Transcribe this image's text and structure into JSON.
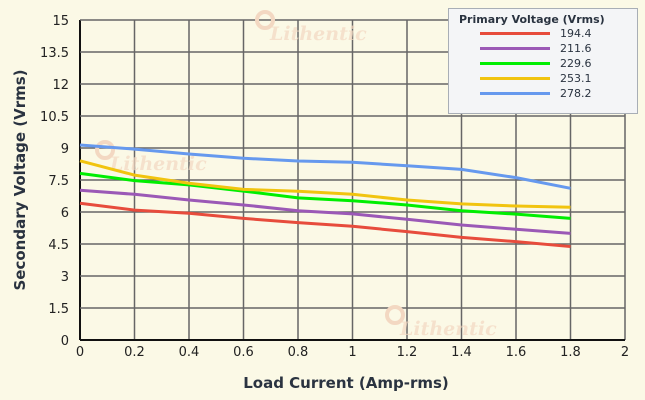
{
  "chart_data": {
    "type": "line",
    "xlabel": "Load Current (Amp-rms)",
    "ylabel": "Secondary Voltage (Vrms)",
    "xlim": [
      0,
      2
    ],
    "ylim": [
      0,
      15
    ],
    "xticks": [
      "0",
      "0.2",
      "0.4",
      "0.6",
      "0.8",
      "1",
      "1.2",
      "1.4",
      "1.6",
      "1.8",
      "2"
    ],
    "yticks": [
      "0",
      "1.5",
      "3",
      "4.5",
      "6",
      "7.5",
      "9",
      "10.5",
      "12",
      "13.5",
      "15"
    ],
    "grid": true,
    "legend_title": "Primary Voltage (Vrms)",
    "legend_position": "top-right",
    "x": [
      0,
      0.2,
      0.4,
      0.6,
      0.8,
      1.0,
      1.2,
      1.4,
      1.6,
      1.8
    ],
    "series": [
      {
        "name": "194.4",
        "color": "#e74c3c",
        "values": [
          6.41,
          6.09,
          5.94,
          5.7,
          5.5,
          5.33,
          5.08,
          4.81,
          4.61,
          4.38
        ]
      },
      {
        "name": "211.6",
        "color": "#9b59b6",
        "values": [
          7.02,
          6.83,
          6.56,
          6.33,
          6.06,
          5.91,
          5.66,
          5.39,
          5.19,
          5.0
        ]
      },
      {
        "name": "229.6",
        "color": "#00ee00",
        "values": [
          7.81,
          7.47,
          7.27,
          6.98,
          6.66,
          6.53,
          6.33,
          6.06,
          5.9,
          5.7
        ]
      },
      {
        "name": "253.1",
        "color": "#f1c40f",
        "values": [
          8.4,
          7.73,
          7.35,
          7.06,
          6.97,
          6.83,
          6.56,
          6.38,
          6.28,
          6.22
        ]
      },
      {
        "name": "278.2",
        "color": "#6699ee",
        "values": [
          9.14,
          8.95,
          8.72,
          8.52,
          8.39,
          8.33,
          8.17,
          8.0,
          7.61,
          7.11
        ]
      }
    ]
  },
  "watermark": "Lithentic"
}
